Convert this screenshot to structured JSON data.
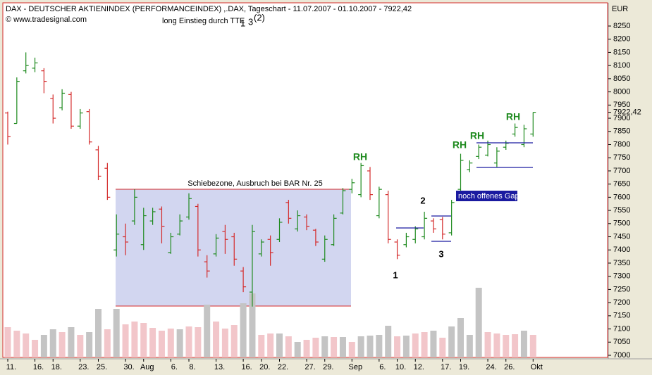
{
  "chart_data": {
    "type": "ohlc",
    "title": "DAX - DEUTSCHER AKTIENINDEX (PERFORMANCEINDEX) ,.DAX, Tageschart - 11.07.2007 - 01.10.2007 - 7922,42",
    "subtitle": "© www.tradesignal.com",
    "y_axis_label": "EUR",
    "categories": [
      "11.",
      null,
      null,
      "16.",
      null,
      "18.",
      null,
      null,
      "23.",
      null,
      "25.",
      null,
      null,
      "30.",
      null,
      "Aug",
      null,
      null,
      "6.",
      null,
      "8.",
      null,
      null,
      "13.",
      null,
      null,
      "16.",
      null,
      "20.",
      null,
      "22.",
      null,
      null,
      "27.",
      null,
      "29.",
      null,
      null,
      "Sep",
      null,
      null,
      "6.",
      null,
      "10.",
      null,
      "12.",
      null,
      null,
      "17.",
      null,
      "19.",
      null,
      null,
      "24.",
      null,
      "26.",
      null,
      null,
      "Okt"
    ],
    "open": [
      7920,
      7880,
      8080,
      8090,
      8080,
      7975,
      7940,
      7990,
      7870,
      7925,
      7780,
      7710,
      7400,
      7450,
      7510,
      7420,
      7510,
      7555,
      7390,
      7460,
      7525,
      7565,
      7355,
      7385,
      7470,
      7450,
      7320,
      7240,
      7385,
      7440,
      7440,
      7580,
      7480,
      7525,
      7475,
      7365,
      7420,
      7540,
      7630,
      7610,
      7700,
      7530,
      7610,
      7430,
      7420,
      7440,
      7450,
      7510,
      7515,
      7465,
      7630,
      7705,
      7755,
      7760,
      7730,
      7790,
      7840,
      7800,
      7840
    ],
    "high": [
      7925,
      8055,
      8150,
      8130,
      8090,
      7990,
      8010,
      8000,
      7935,
      7935,
      7795,
      7730,
      7535,
      7500,
      7630,
      7560,
      7560,
      7565,
      7465,
      7535,
      7615,
      7575,
      7380,
      7460,
      7495,
      7465,
      7335,
      7495,
      7440,
      7455,
      7520,
      7590,
      7550,
      7535,
      7480,
      7455,
      7535,
      7635,
      7670,
      7730,
      7715,
      7640,
      7625,
      7440,
      7465,
      7490,
      7545,
      7520,
      7525,
      7590,
      7765,
      7740,
      7800,
      7815,
      7790,
      7815,
      7880,
      7875,
      7922.42
    ],
    "low": [
      7800,
      7880,
      8070,
      8075,
      7995,
      7880,
      7930,
      7860,
      7860,
      7800,
      7665,
      7590,
      7375,
      7380,
      7495,
      7400,
      7495,
      7425,
      7385,
      7455,
      7515,
      7375,
      7295,
      7375,
      7385,
      7340,
      7240,
      7185,
      7375,
      7340,
      7430,
      7500,
      7470,
      7475,
      7415,
      7355,
      7415,
      7535,
      7615,
      7600,
      7590,
      7520,
      7425,
      7365,
      7410,
      7425,
      7440,
      7465,
      7440,
      7455,
      7625,
      7695,
      7745,
      7755,
      7715,
      7780,
      7830,
      7790,
      7830
    ],
    "close": [
      7830,
      8040,
      8100,
      8110,
      8040,
      7900,
      7995,
      7870,
      7920,
      7810,
      7680,
      7600,
      7460,
      7430,
      7600,
      7530,
      7545,
      7490,
      7450,
      7510,
      7595,
      7400,
      7320,
      7445,
      7440,
      7365,
      7260,
      7470,
      7430,
      7390,
      7505,
      7520,
      7530,
      7490,
      7430,
      7440,
      7520,
      7625,
      7655,
      7720,
      7610,
      7630,
      7440,
      7380,
      7450,
      7480,
      7520,
      7480,
      7460,
      7580,
      7740,
      7730,
      7790,
      7800,
      7775,
      7805,
      7865,
      7860,
      7922.42
    ],
    "last_value_label": "7922,42",
    "up_color": "#1e8a1e",
    "down_color": "#d42a2a",
    "volume": [
      43,
      38,
      34,
      25,
      32,
      40,
      36,
      43,
      32,
      36,
      69,
      40,
      69,
      47,
      51,
      49,
      42,
      38,
      41,
      40,
      44,
      43,
      75,
      51,
      41,
      46,
      77,
      91,
      32,
      34,
      34,
      30,
      22,
      25,
      28,
      30,
      29,
      29,
      22,
      30,
      31,
      32,
      45,
      30,
      31,
      34,
      36,
      38,
      28,
      44,
      56,
      32,
      99,
      36,
      34,
      32,
      33,
      38,
      32
    ],
    "volume_lim": [
      0,
      120
    ],
    "volume_colors": [
      "#f2c6ca",
      "#f2c6ca",
      "#f2c6ca",
      "#f2c6ca",
      "#c4c4c4",
      "#c4c4c4",
      "#f2c6ca",
      "#c4c4c4",
      "#f2c6ca",
      "#c4c4c4",
      "#c4c4c4",
      "#f2c6ca",
      "#c4c4c4",
      "#f2c6ca",
      "#f2c6ca",
      "#f2c6ca",
      "#f2c6ca",
      "#f2c6ca",
      "#f2c6ca",
      "#c4c4c4",
      "#f2c6ca",
      "#f2c6ca",
      "#c4c4c4",
      "#f2c6ca",
      "#f2c6ca",
      "#f2c6ca",
      "#c4c4c4",
      "#c4c4c4",
      "#f2c6ca",
      "#f2c6ca",
      "#c4c4c4",
      "#f2c6ca",
      "#c4c4c4",
      "#f2c6ca",
      "#f2c6ca",
      "#c4c4c4",
      "#f2c6ca",
      "#c4c4c4",
      "#f2c6ca",
      "#c4c4c4",
      "#c4c4c4",
      "#c4c4c4",
      "#c4c4c4",
      "#f2c6ca",
      "#c4c4c4",
      "#f2c6ca",
      "#f2c6ca",
      "#c4c4c4",
      "#f2c6ca",
      "#c4c4c4",
      "#c4c4c4",
      "#c4c4c4",
      "#c4c4c4",
      "#f2c6ca",
      "#f2c6ca",
      "#f2c6ca",
      "#f2c6ca",
      "#c4c4c4",
      "#f2c6ca"
    ],
    "ylim": [
      7000,
      8250
    ],
    "yticks": [
      7000,
      7050,
      7100,
      7150,
      7200,
      7250,
      7300,
      7350,
      7400,
      7450,
      7500,
      7550,
      7600,
      7650,
      7700,
      7750,
      7800,
      7850,
      7900,
      7950,
      8000,
      8050,
      8100,
      8150,
      8200,
      8250
    ],
    "annotations": [
      "long Einstieg durch TTE",
      "1",
      "3",
      "(2)",
      "Schiebezone, Ausbruch bei BAR Nr. 25",
      "RH",
      "RH",
      "RH",
      "RH",
      "1",
      "2",
      "3",
      "noch offenes Gap"
    ]
  }
}
